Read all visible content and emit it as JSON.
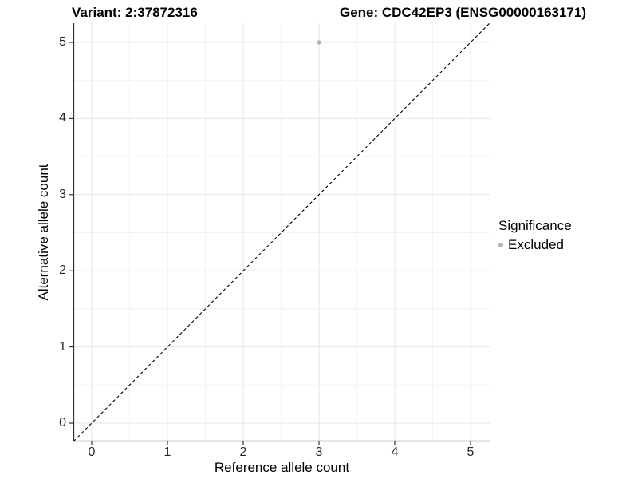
{
  "chart_data": {
    "type": "scatter",
    "title_left": "Variant: 2:37872316",
    "title_right": "Gene: CDC42EP3 (ENSG00000163171)",
    "xlabel": "Reference allele count",
    "ylabel": "Alternative allele count",
    "xlim": [
      -0.25,
      5.25
    ],
    "ylim": [
      -0.25,
      5.25
    ],
    "x_ticks": [
      0,
      1,
      2,
      3,
      4,
      5
    ],
    "y_ticks": [
      0,
      1,
      2,
      3,
      4,
      5
    ],
    "grid": "major+minor",
    "points": [
      {
        "x": 3,
        "y": 5,
        "series": "Excluded"
      }
    ],
    "reference_line": {
      "type": "identity",
      "style": "dashed"
    },
    "legend": {
      "title": "Significance",
      "position": "right",
      "items": [
        {
          "label": "Excluded",
          "marker": "circle"
        }
      ]
    },
    "colors": {
      "point": "#b3b3b3",
      "grid_major": "#e6e6e6",
      "grid_minor": "#f3f3f3",
      "axis_line": "#333333",
      "reference_line": "#000000",
      "background": "#ffffff"
    }
  }
}
